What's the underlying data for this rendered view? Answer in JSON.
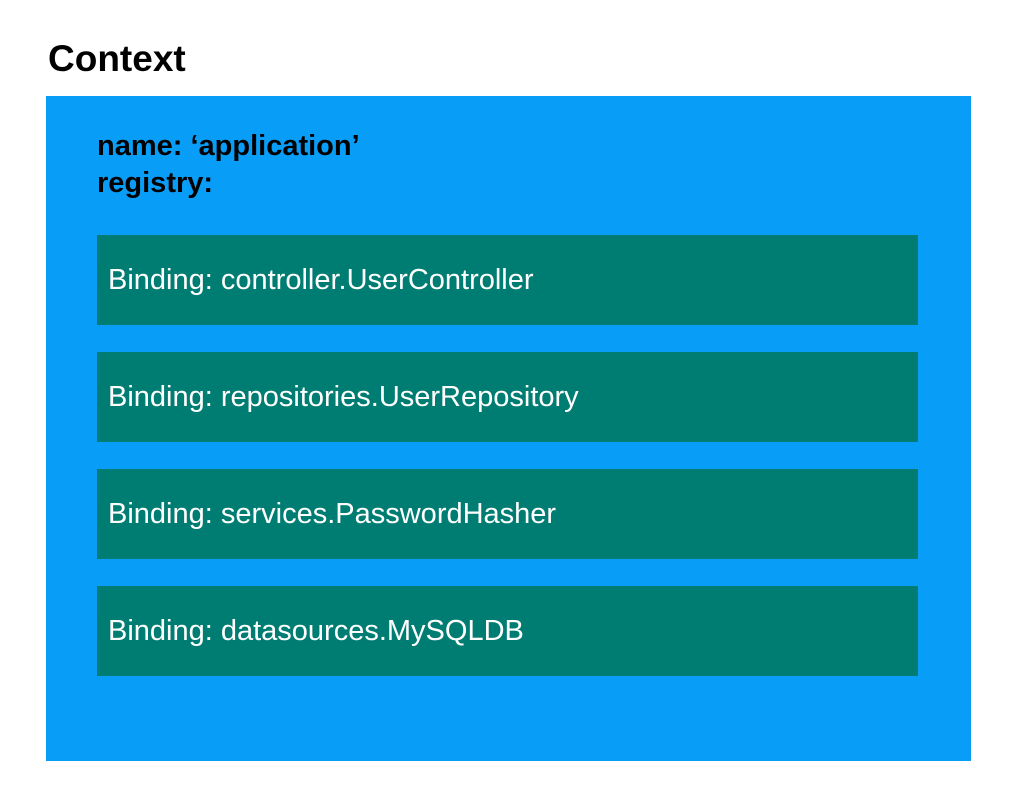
{
  "title": "Context",
  "context": {
    "name_line": "name: ‘application’",
    "registry_line": "registry:"
  },
  "bindings": [
    {
      "label": "Binding: controller.UserController"
    },
    {
      "label": "Binding: repositories.UserRepository"
    },
    {
      "label": "Binding: services.PasswordHasher"
    },
    {
      "label": "Binding: datasources.MySQLDB"
    }
  ],
  "colors": {
    "context_bg": "#089EF8",
    "binding_bg": "#007D73",
    "title_text": "#000000",
    "binding_text": "#FFFFFF"
  }
}
